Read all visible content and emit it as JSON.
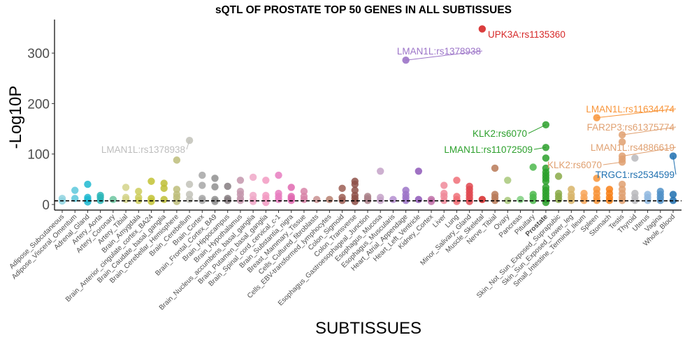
{
  "chart_data": {
    "type": "scatter",
    "title": "sQTL OF PROSTATE TOP 50 GENES IN ALL SUBTISSUES",
    "xlabel": "SUBTISSUES",
    "ylabel": "-Log10P",
    "ylim": [
      0,
      365
    ],
    "yticks": [
      0,
      100,
      200,
      300
    ],
    "threshold_line": {
      "value": 7.3,
      "style": "dashed"
    },
    "grid": false,
    "legend": "none",
    "highlight_category": "Prostate",
    "categories": [
      "Adipose_Subcutaneous",
      "Adipose_Visceral_Omentum",
      "Adrenal_Gland",
      "Artery_Aorta",
      "Artery_Coronary",
      "Artery_Tibial",
      "Brain_Amygdala",
      "Brain_Anterior_cingulate_cortex_BA24",
      "Brain_Caudate_basal_ganglia",
      "Brain_Cerebellar_Hemisphere",
      "Brain_Cerebellum",
      "Brain_Cortex",
      "Brain_Frontal_Cortex_BA9",
      "Brain_Hippocampus",
      "Brain_Hypothalamus",
      "Brain_Nucleus_accumbens_basal_ganglia",
      "Brain_Putamen_basal_ganglia",
      "Brain_Spinal_cord_cervical_c-1",
      "Brain_Substantia_nigra",
      "Breast_Mammary_Tissue",
      "Cells_Cultured_fibroblasts",
      "Cells_EBV-transformed_lymphocytes",
      "Colon_Sigmoid",
      "Colon_Transverse",
      "Esophagus_Gastroesophageal_Junction",
      "Esophagus_Mucosa",
      "Esophagus_Muscularis",
      "Heart_Atrial_Appendage",
      "Heart_Left_Ventricle",
      "Kidney_Cortex",
      "Liver",
      "Lung",
      "Minor_Salivary_Gland",
      "Muscle_Skeletal",
      "Nerve_Tibial",
      "Ovary",
      "Pancreas",
      "Pituitary",
      "Prostate",
      "Skin_Not_Sun_Exposed_Suprapubic",
      "Skin_Sun_Exposed_Lower_leg",
      "Small_Intestine_Terminal_Ileum",
      "Spleen",
      "Stomach",
      "Testis",
      "Thyroid",
      "Uterus",
      "Vagina",
      "Whole_Blood"
    ],
    "colors": [
      "#8fd3e0",
      "#5cc8dc",
      "#1fb8d0",
      "#2ab6b8",
      "#6cc6a0",
      "#d3d38a",
      "#cccc5a",
      "#c2c232",
      "#bebe36",
      "#bdbd7a",
      "#c2c2b8",
      "#a6a6a6",
      "#8f8f8f",
      "#857c80",
      "#c497ad",
      "#f0a8c8",
      "#f29ac2",
      "#e87cc0",
      "#e068b0",
      "#d884a8",
      "#c99090",
      "#b78070",
      "#9c5e54",
      "#8e5048",
      "#aa8088",
      "#c4a2c8",
      "#b48ed0",
      "#9c74c8",
      "#8e58b8",
      "#c070a8",
      "#f08a9a",
      "#f07078",
      "#e04850",
      "#d62828",
      "#b87a58",
      "#a8c87a",
      "#80d080",
      "#4cb84c",
      "#2ca02c",
      "#8aaa48",
      "#d8b468",
      "#f8a458",
      "#f89438",
      "#f88018",
      "#e0a070",
      "#b8b8bc",
      "#90b8e0",
      "#5090c8",
      "#1f70b0"
    ],
    "points": [
      [
        12,
        7
      ],
      [
        12,
        28
      ],
      [
        5,
        10,
        14,
        40
      ],
      [
        8,
        14,
        18
      ],
      [
        10
      ],
      [
        10,
        14,
        34
      ],
      [
        8,
        14,
        26
      ],
      [
        6,
        12,
        46
      ],
      [
        10,
        32,
        42
      ],
      [
        6,
        14,
        20,
        30,
        88
      ],
      [
        10,
        20,
        40,
        127
      ],
      [
        8,
        12,
        38,
        58
      ],
      [
        6,
        10,
        35,
        52
      ],
      [
        8,
        12,
        36
      ],
      [
        8,
        12,
        20,
        26,
        48
      ],
      [
        6,
        10,
        18,
        54
      ],
      [
        4,
        12,
        18,
        48
      ],
      [
        10,
        16,
        22,
        58
      ],
      [
        8,
        12,
        16,
        34
      ],
      [
        10,
        16,
        26
      ],
      [
        10
      ],
      [
        10
      ],
      [
        8,
        14,
        32
      ],
      [
        6,
        12,
        18,
        28,
        40,
        46
      ],
      [
        8,
        12,
        16
      ],
      [
        8,
        14,
        66
      ],
      [
        10
      ],
      [
        8,
        14,
        20,
        28
      ],
      [
        10,
        66
      ],
      [
        6,
        10
      ],
      [
        8,
        16,
        22,
        38
      ],
      [
        6,
        10,
        16,
        48
      ],
      [
        6,
        12,
        18,
        24,
        30,
        36
      ],
      [
        10
      ],
      [
        8,
        14,
        20,
        72
      ],
      [
        8,
        48
      ],
      [
        10
      ],
      [
        8,
        14,
        20,
        74
      ],
      [
        4,
        10,
        16,
        22,
        28,
        34,
        46,
        52,
        58,
        64,
        72,
        92,
        113,
        158
      ],
      [
        10,
        16,
        22,
        56
      ],
      [
        8,
        14,
        20,
        30
      ],
      [
        8,
        14,
        22
      ],
      [
        8,
        14,
        22,
        30,
        52,
        172
      ],
      [
        8,
        14,
        22,
        30
      ],
      [
        8,
        14,
        22,
        30,
        40,
        84,
        90,
        96,
        124,
        138
      ],
      [
        8,
        14,
        22,
        92
      ],
      [
        8,
        14,
        20
      ],
      [
        8,
        14,
        20,
        26
      ],
      [
        8,
        20,
        96
      ]
    ],
    "extra_points": [
      {
        "category": "Muscle_Skeletal",
        "value": 348
      },
      {
        "category": "Heart_Atrial_Appendage",
        "value": 286
      }
    ],
    "annotations": [
      {
        "label": "UPK3A:rs1135360",
        "category": "Muscle_Skeletal",
        "value": 348,
        "color": "#d62828"
      },
      {
        "label": "LMAN1L:rs1378938",
        "category": "Heart_Atrial_Appendage",
        "value": 286,
        "color": "#9c74c8"
      },
      {
        "label": "LMAN1L:rs1378938",
        "category": "Brain_Cerebellum",
        "value": 127,
        "color": "#bdbdbd"
      },
      {
        "label": "KLK2:rs6070",
        "category": "Prostate",
        "value": 158,
        "color": "#2ca02c"
      },
      {
        "label": "LMAN1L:rs11072509",
        "category": "Prostate",
        "value": 113,
        "color": "#2ca02c"
      },
      {
        "label": "LMAN1L:rs11634474",
        "category": "Spleen",
        "value": 172,
        "color": "#f89438"
      },
      {
        "label": "FAR2P3:rs61375774",
        "category": "Testis",
        "value": 138,
        "color": "#e0a070"
      },
      {
        "label": "LMAN1L:rs4886619",
        "category": "Testis",
        "value": 96,
        "color": "#e0a070"
      },
      {
        "label": "KLK2:rs6070",
        "category": "Testis",
        "value": 84,
        "color": "#e0a070"
      },
      {
        "label": "TRGC1:rs2534599",
        "category": "Whole_Blood",
        "value": 96,
        "color": "#1f70b0"
      }
    ]
  }
}
